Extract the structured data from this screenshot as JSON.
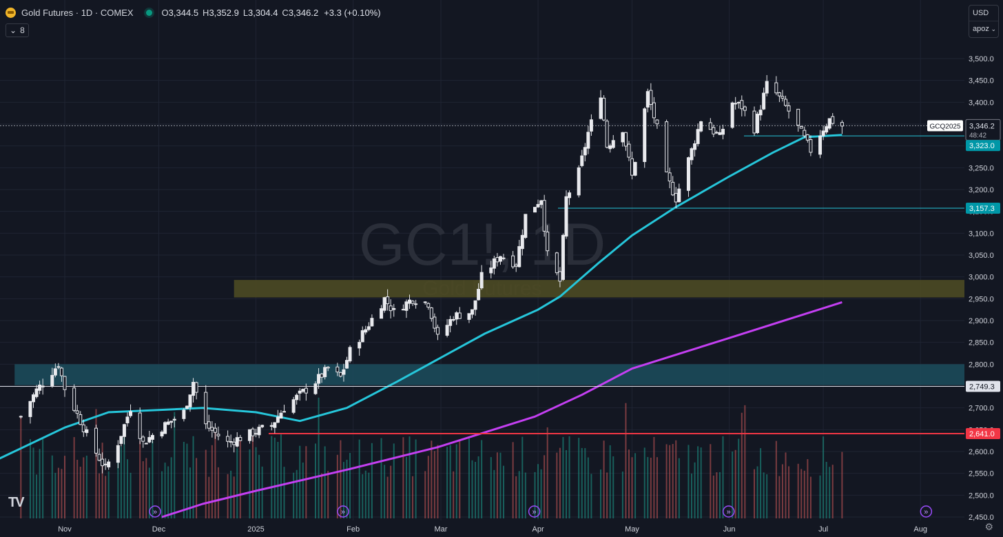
{
  "header": {
    "title": "Gold Futures · 1D · COMEX",
    "ohlc": [
      {
        "key": "O",
        "value": "3,344.5"
      },
      {
        "key": "H",
        "value": "3,352.9"
      },
      {
        "key": "L",
        "value": "3,304.4"
      },
      {
        "key": "C",
        "value": "3,346.2"
      }
    ],
    "change": "+3.3 (+0.10%)",
    "indicators_count": "8"
  },
  "currency": {
    "code": "USD",
    "unit": "apoz"
  },
  "watermark": {
    "symbol": "GC1!, 1D",
    "name": "Gold Futures"
  },
  "colors": {
    "background": "#131722",
    "grid": "#1f2433",
    "candle": "#e9eaee",
    "ma_fast": "#26c6da",
    "ma_slow": "#c43ff2",
    "volume_up": "#1e9c8c",
    "volume_down": "#d05a5a",
    "zone_upper": "#4d4a24",
    "zone_lower": "#1c4a5a",
    "support_red": "#f23645"
  },
  "chart_data": {
    "type": "candlestick",
    "symbol": "GCQ2025",
    "interval": "1D",
    "ylim": [
      2450,
      3550
    ],
    "y_ticks": [
      "2,450.0",
      "2,500.0",
      "2,550.0",
      "2,600.0",
      "2,650.0",
      "2,700.0",
      "2,750.0",
      "2,800.0",
      "2,850.0",
      "2,900.0",
      "2,950.0",
      "3,000.0",
      "3,050.0",
      "3,100.0",
      "3,150.0",
      "3,200.0",
      "3,250.0",
      "3,300.0",
      "3,350.0",
      "3,400.0",
      "3,450.0",
      "3,500.0"
    ],
    "x_ticks": [
      {
        "label": "Nov",
        "date": "2024-11-01"
      },
      {
        "label": "Dec",
        "date": "2024-12-01"
      },
      {
        "label": "2025",
        "date": "2025-01-01"
      },
      {
        "label": "Feb",
        "date": "2025-02-01"
      },
      {
        "label": "Mar",
        "date": "2025-03-01"
      },
      {
        "label": "Apr",
        "date": "2025-04-01"
      },
      {
        "label": "May",
        "date": "2025-05-01"
      },
      {
        "label": "Jun",
        "date": "2025-06-01"
      },
      {
        "label": "Jul",
        "date": "2025-07-01"
      },
      {
        "label": "Aug",
        "date": "2025-08-01"
      }
    ],
    "first_candle_date": "2024-10-18",
    "close_path": [
      [
        "2024-10-18",
        2680
      ],
      [
        "2024-10-23",
        2740
      ],
      [
        "2024-10-30",
        2800
      ],
      [
        "2024-11-01",
        2745
      ],
      [
        "2024-11-06",
        2670
      ],
      [
        "2024-11-10",
        2610
      ],
      [
        "2024-11-14",
        2560
      ],
      [
        "2024-11-18",
        2620
      ],
      [
        "2024-11-22",
        2700
      ],
      [
        "2024-11-26",
        2620
      ],
      [
        "2024-12-03",
        2660
      ],
      [
        "2024-12-09",
        2690
      ],
      [
        "2024-12-12",
        2760
      ],
      [
        "2024-12-16",
        2660
      ],
      [
        "2024-12-23",
        2620
      ],
      [
        "2024-12-30",
        2640
      ],
      [
        "2025-01-06",
        2660
      ],
      [
        "2025-01-10",
        2700
      ],
      [
        "2025-01-15",
        2730
      ],
      [
        "2025-01-20",
        2760
      ],
      [
        "2025-01-24",
        2790
      ],
      [
        "2025-01-28",
        2770
      ],
      [
        "2025-01-31",
        2830
      ],
      [
        "2025-02-05",
        2880
      ],
      [
        "2025-02-11",
        2950
      ],
      [
        "2025-02-14",
        2920
      ],
      [
        "2025-02-20",
        2950
      ],
      [
        "2025-02-25",
        2940
      ],
      [
        "2025-02-28",
        2860
      ],
      [
        "2025-03-05",
        2910
      ],
      [
        "2025-03-11",
        2920
      ],
      [
        "2025-03-14",
        3000
      ],
      [
        "2025-03-20",
        3050
      ],
      [
        "2025-03-25",
        3030
      ],
      [
        "2025-03-28",
        3140
      ],
      [
        "2025-04-02",
        3180
      ],
      [
        "2025-04-04",
        3050
      ],
      [
        "2025-04-08",
        2990
      ],
      [
        "2025-04-10",
        3180
      ],
      [
        "2025-04-14",
        3240
      ],
      [
        "2025-04-17",
        3330
      ],
      [
        "2025-04-21",
        3420
      ],
      [
        "2025-04-23",
        3300
      ],
      [
        "2025-04-28",
        3340
      ],
      [
        "2025-05-01",
        3230
      ],
      [
        "2025-05-06",
        3420
      ],
      [
        "2025-05-09",
        3340
      ],
      [
        "2025-05-12",
        3230
      ],
      [
        "2025-05-15",
        3180
      ],
      [
        "2025-05-20",
        3290
      ],
      [
        "2025-05-23",
        3360
      ],
      [
        "2025-05-29",
        3320
      ],
      [
        "2025-06-02",
        3400
      ],
      [
        "2025-06-05",
        3390
      ],
      [
        "2025-06-09",
        3340
      ],
      [
        "2025-06-13",
        3440
      ],
      [
        "2025-06-16",
        3420
      ],
      [
        "2025-06-20",
        3380
      ],
      [
        "2025-06-24",
        3330
      ],
      [
        "2025-06-27",
        3290
      ],
      [
        "2025-07-01",
        3340
      ],
      [
        "2025-07-03",
        3360
      ],
      [
        "2025-07-07",
        3346
      ]
    ],
    "price_labels": [
      {
        "label": "GCQ2025",
        "value": "3,346.2",
        "sub": "48:42",
        "level": 3346.2
      },
      {
        "value": "3,323.0",
        "level": 3323.0
      },
      {
        "value": "3,157.3",
        "level": 3157.3
      },
      {
        "value": "2,749.3",
        "level": 2749.3
      },
      {
        "value": "2,641.0",
        "level": 2641.0
      }
    ],
    "zones": [
      {
        "from": 2953,
        "to": 2993,
        "color": "#4d4a24",
        "start_date": "2024-12-25"
      },
      {
        "from": 2752,
        "to": 2800,
        "color": "#1c4a5a",
        "start_date": "2024-10-16"
      }
    ],
    "ma_fast": [
      [
        "2024-10-10",
        2580
      ],
      [
        "2024-11-01",
        2655
      ],
      [
        "2024-11-15",
        2690
      ],
      [
        "2024-12-01",
        2695
      ],
      [
        "2024-12-15",
        2700
      ],
      [
        "2025-01-01",
        2690
      ],
      [
        "2025-01-15",
        2670
      ],
      [
        "2025-01-30",
        2700
      ],
      [
        "2025-02-15",
        2760
      ],
      [
        "2025-03-01",
        2815
      ],
      [
        "2025-03-15",
        2870
      ],
      [
        "2025-04-01",
        2925
      ],
      [
        "2025-04-08",
        2955
      ],
      [
        "2025-04-20",
        3030
      ],
      [
        "2025-05-01",
        3095
      ],
      [
        "2025-05-15",
        3160
      ],
      [
        "2025-06-01",
        3230
      ],
      [
        "2025-06-15",
        3285
      ],
      [
        "2025-06-25",
        3320
      ],
      [
        "2025-07-07",
        3325
      ]
    ],
    "ma_slow": [
      [
        "2024-12-02",
        2450
      ],
      [
        "2024-12-15",
        2480
      ],
      [
        "2025-01-01",
        2510
      ],
      [
        "2025-01-31",
        2560
      ],
      [
        "2025-02-28",
        2610
      ],
      [
        "2025-03-31",
        2680
      ],
      [
        "2025-04-15",
        2730
      ],
      [
        "2025-05-01",
        2790
      ],
      [
        "2025-06-01",
        2860
      ],
      [
        "2025-07-07",
        2942
      ]
    ]
  }
}
